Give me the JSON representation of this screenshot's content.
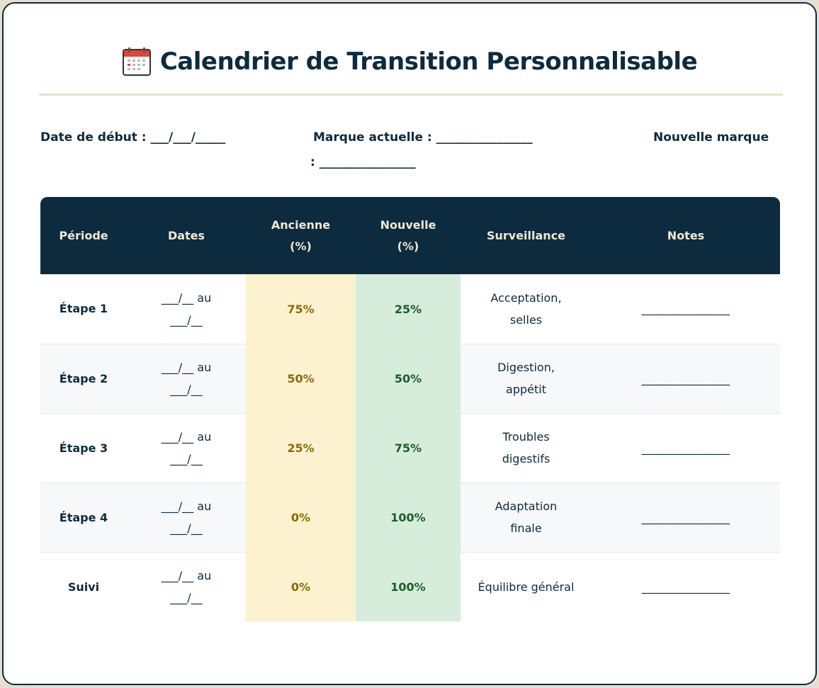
{
  "header": {
    "title": "Calendrier de Transition Personnalisable",
    "icon": "calendar-icon"
  },
  "fields": {
    "start_date": "Date de début : ___/___/_____",
    "current_brand": "Marque actuelle : ________________",
    "new_brand_label": "Nouvelle marque",
    "new_brand_line": ": ________________"
  },
  "table": {
    "headers": [
      "Période",
      "Dates",
      "Ancienne (%)",
      "Nouvelle (%)",
      "Surveillance",
      "Notes"
    ],
    "rows": [
      {
        "period": "Étape 1",
        "dates_line1": "___/__ au",
        "dates_line2": "___/__",
        "old": "75%",
        "new": "25%",
        "monitor_line1": "Acceptation,",
        "monitor_line2": "selles",
        "notes": "_______________"
      },
      {
        "period": "Étape 2",
        "dates_line1": "___/__ au",
        "dates_line2": "___/__",
        "old": "50%",
        "new": "50%",
        "monitor_line1": "Digestion,",
        "monitor_line2": "appétit",
        "notes": "_______________"
      },
      {
        "period": "Étape 3",
        "dates_line1": "___/__ au",
        "dates_line2": "___/__",
        "old": "25%",
        "new": "75%",
        "monitor_line1": "Troubles",
        "monitor_line2": "digestifs",
        "notes": "_______________"
      },
      {
        "period": "Étape 4",
        "dates_line1": "___/__ au",
        "dates_line2": "___/__",
        "old": "0%",
        "new": "100%",
        "monitor_line1": "Adaptation",
        "monitor_line2": "finale",
        "notes": "_______________"
      },
      {
        "period": "Suivi",
        "dates_line1": "___/__ au",
        "dates_line2": "___/__",
        "old": "0%",
        "new": "100%",
        "monitor_line1": "Équilibre général",
        "monitor_line2": "",
        "notes": "_______________"
      }
    ]
  },
  "colors": {
    "navy": "#0d2b3e",
    "cream": "#f1e8d6",
    "old_bg": "#fdf2cf",
    "new_bg": "#d6eddb"
  }
}
